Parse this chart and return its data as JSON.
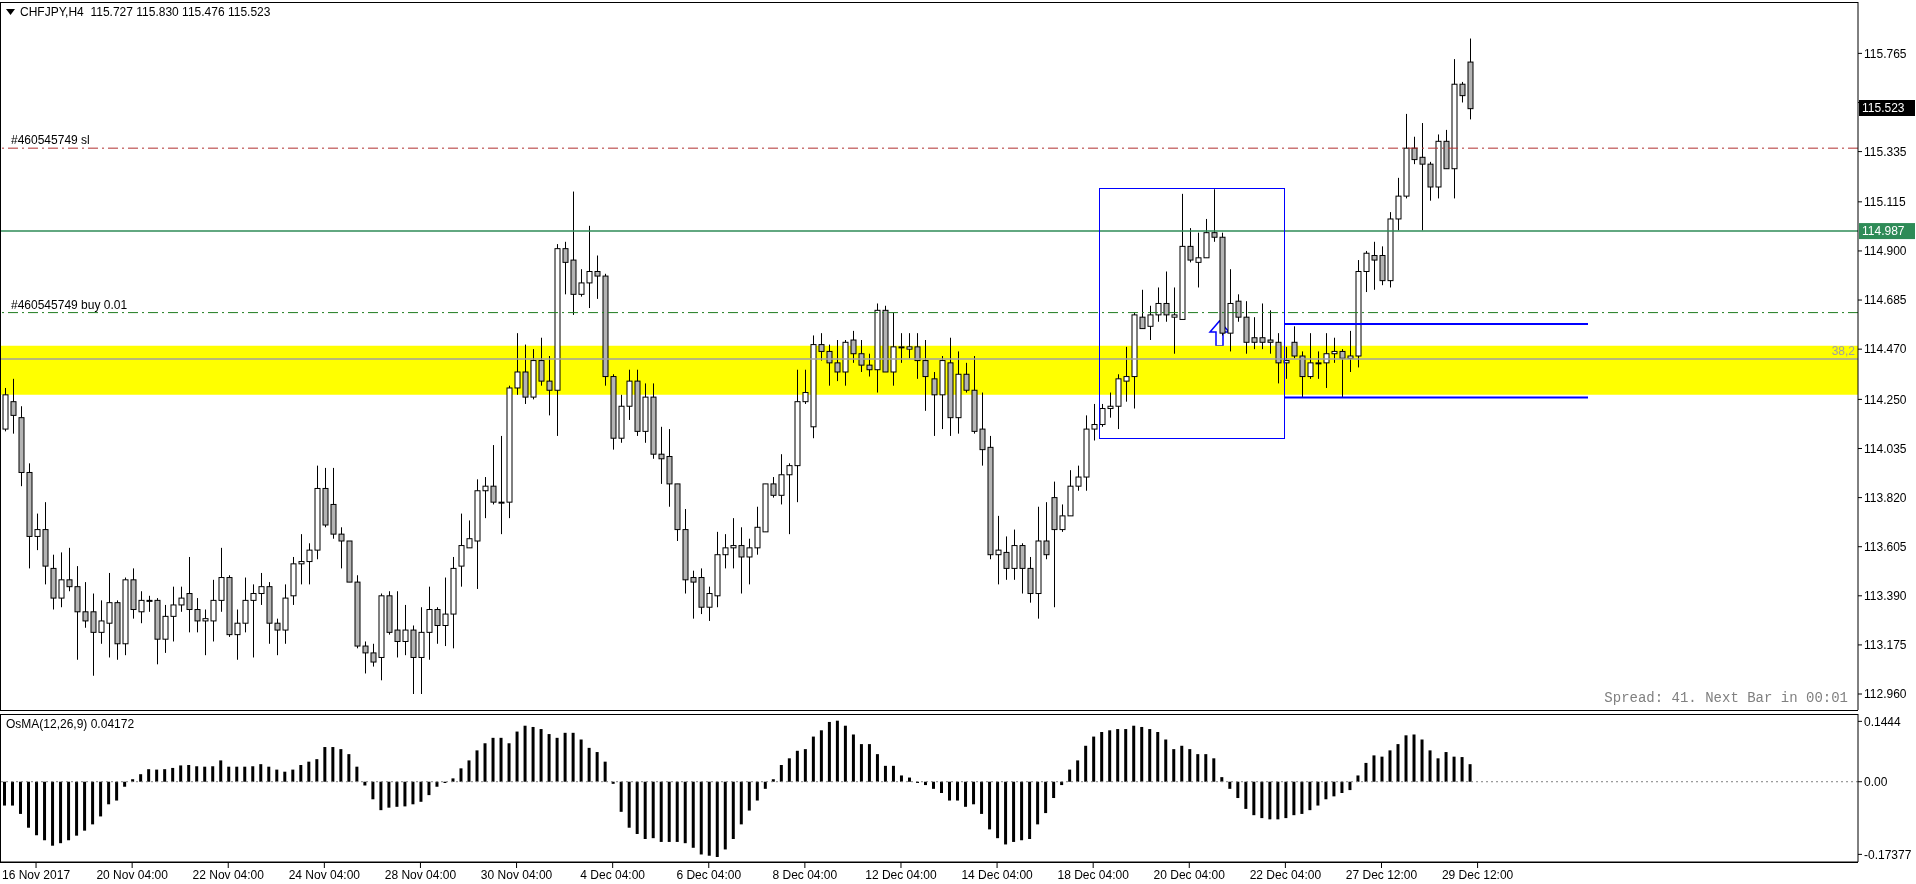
{
  "chart_data": [
    {
      "type": "candlestick",
      "title": "CHFJPY,H4  115.727 115.830 115.476 115.523",
      "tick_labels": "y",
      "categories": [
        null,
        null,
        null,
        null,
        null,
        null,
        null,
        null,
        null,
        null,
        null,
        null,
        null,
        null,
        null,
        null,
        null,
        null,
        null,
        null,
        null,
        null,
        null,
        null,
        null,
        null,
        null,
        null,
        null,
        null,
        null,
        null,
        null,
        null,
        null,
        null,
        null,
        null,
        null,
        null,
        null,
        null,
        null,
        null,
        null,
        null,
        null,
        null,
        null,
        null,
        null,
        null,
        null,
        null,
        null,
        null,
        null,
        null,
        null,
        null,
        null,
        null,
        null,
        null,
        null,
        null,
        null,
        null,
        null,
        null,
        null,
        null,
        null,
        null,
        null,
        null,
        null,
        null,
        null,
        null,
        null,
        null,
        null,
        null,
        null,
        null,
        null,
        null,
        null,
        null,
        null,
        null,
        null,
        null,
        null,
        null,
        null,
        null,
        null,
        null,
        null,
        null,
        null,
        null,
        null,
        null,
        null,
        null,
        null,
        null,
        null,
        null,
        null,
        null,
        null,
        null,
        null,
        null,
        null,
        null,
        null,
        null,
        null,
        null,
        null,
        null,
        null,
        null,
        null,
        null,
        null,
        null,
        null,
        null,
        null,
        null,
        null,
        null,
        null,
        null,
        null,
        null,
        null,
        null,
        null,
        null,
        null,
        null,
        null,
        null,
        null,
        null,
        null,
        null,
        null,
        null,
        null,
        null,
        null,
        null,
        null,
        null,
        null,
        null,
        null,
        null,
        null,
        null,
        null,
        null,
        null,
        null,
        null,
        null,
        null,
        null,
        null,
        null,
        null,
        null,
        null,
        null,
        null,
        null,
        null,
        null,
        null,
        null,
        null,
        null,
        null,
        null,
        null,
        null,
        null,
        null,
        null,
        null,
        null,
        null,
        null,
        null,
        null,
        null,
        null,
        null,
        null,
        null,
        null,
        null,
        null,
        null,
        null,
        null,
        null,
        null,
        null,
        null,
        null,
        null,
        null,
        null,
        null,
        null,
        null,
        null,
        null,
        null,
        null,
        null,
        null,
        null
      ],
      "ohlc": [
        [
          114.12,
          114.3,
          114.11,
          114.27
        ],
        [
          114.24,
          114.34,
          114.1,
          114.18
        ],
        [
          114.17,
          114.22,
          113.87,
          113.93
        ],
        [
          113.93,
          113.97,
          113.51,
          113.65
        ],
        [
          113.65,
          113.75,
          113.59,
          113.68
        ],
        [
          113.68,
          113.8,
          113.44,
          113.52
        ],
        [
          113.51,
          113.57,
          113.33,
          113.38
        ],
        [
          113.38,
          113.58,
          113.34,
          113.46
        ],
        [
          113.46,
          113.6,
          113.41,
          113.43
        ],
        [
          113.43,
          113.52,
          113.11,
          113.32
        ],
        [
          113.32,
          113.45,
          113.25,
          113.28
        ],
        [
          113.32,
          113.4,
          113.04,
          113.23
        ],
        [
          113.23,
          113.37,
          113.18,
          113.28
        ],
        [
          113.27,
          113.49,
          113.12,
          113.36
        ],
        [
          113.36,
          113.37,
          113.11,
          113.18
        ],
        [
          113.18,
          113.47,
          113.13,
          113.46
        ],
        [
          113.46,
          113.51,
          113.29,
          113.33
        ],
        [
          113.32,
          113.41,
          113.27,
          113.37
        ],
        [
          113.37,
          113.39,
          113.32,
          113.37
        ],
        [
          113.37,
          113.38,
          113.09,
          113.2
        ],
        [
          113.2,
          113.35,
          113.14,
          113.3
        ],
        [
          113.3,
          113.43,
          113.19,
          113.35
        ],
        [
          113.35,
          113.43,
          113.32,
          113.38
        ],
        [
          113.4,
          113.56,
          113.23,
          113.33
        ],
        [
          113.33,
          113.38,
          113.23,
          113.28
        ],
        [
          113.28,
          113.33,
          113.13,
          113.29
        ],
        [
          113.28,
          113.46,
          113.19,
          113.37
        ],
        [
          113.37,
          113.6,
          113.32,
          113.47
        ],
        [
          113.47,
          113.48,
          113.21,
          113.22
        ],
        [
          113.22,
          113.33,
          113.11,
          113.27
        ],
        [
          113.27,
          113.47,
          113.23,
          113.37
        ],
        [
          113.37,
          113.44,
          113.12,
          113.4
        ],
        [
          113.4,
          113.49,
          113.35,
          113.43
        ],
        [
          113.43,
          113.45,
          113.18,
          113.27
        ],
        [
          113.27,
          113.29,
          113.13,
          113.24
        ],
        [
          113.24,
          113.44,
          113.18,
          113.38
        ],
        [
          113.39,
          113.56,
          113.35,
          113.53
        ],
        [
          113.53,
          113.66,
          113.44,
          113.54
        ],
        [
          113.54,
          113.62,
          113.44,
          113.59
        ],
        [
          113.59,
          113.96,
          113.55,
          113.86
        ],
        [
          113.86,
          113.95,
          113.69,
          113.7
        ],
        [
          113.79,
          113.95,
          113.64,
          113.66
        ],
        [
          113.66,
          113.69,
          113.51,
          113.63
        ],
        [
          113.63,
          113.63,
          113.45,
          113.45
        ],
        [
          113.45,
          113.48,
          113.16,
          113.17
        ],
        [
          113.17,
          113.19,
          113.05,
          113.14
        ],
        [
          113.14,
          113.18,
          113.08,
          113.1
        ],
        [
          113.12,
          113.4,
          113.02,
          113.39
        ],
        [
          113.39,
          113.41,
          113.22,
          113.23
        ],
        [
          113.24,
          113.41,
          113.12,
          113.19
        ],
        [
          113.19,
          113.35,
          113.13,
          113.24
        ],
        [
          113.24,
          113.26,
          112.96,
          113.12
        ],
        [
          113.12,
          113.34,
          112.96,
          113.23
        ],
        [
          113.23,
          113.43,
          113.11,
          113.33
        ],
        [
          113.33,
          113.34,
          113.18,
          113.26
        ],
        [
          113.26,
          113.47,
          113.17,
          113.31
        ],
        [
          113.31,
          113.56,
          113.16,
          113.51
        ],
        [
          113.52,
          113.75,
          113.43,
          113.61
        ],
        [
          113.6,
          113.72,
          113.6,
          113.64
        ],
        [
          113.63,
          113.9,
          113.42,
          113.85
        ],
        [
          113.85,
          113.91,
          113.73,
          113.87
        ],
        [
          113.87,
          114.05,
          113.79,
          113.8
        ],
        [
          113.8,
          114.09,
          113.66,
          113.8
        ],
        [
          113.8,
          114.31,
          113.73,
          114.3
        ],
        [
          114.3,
          114.54,
          114.27,
          114.37
        ],
        [
          114.37,
          114.49,
          114.23,
          114.26
        ],
        [
          114.26,
          114.47,
          114.25,
          114.42
        ],
        [
          114.42,
          114.52,
          114.31,
          114.33
        ],
        [
          114.33,
          114.44,
          114.18,
          114.29
        ],
        [
          114.29,
          114.93,
          114.09,
          114.91
        ],
        [
          114.91,
          114.94,
          114.71,
          114.85
        ],
        [
          114.86,
          115.16,
          114.62,
          114.71
        ],
        [
          114.71,
          114.82,
          114.7,
          114.76
        ],
        [
          114.76,
          115.01,
          114.65,
          114.81
        ],
        [
          114.81,
          114.88,
          114.69,
          114.79
        ],
        [
          114.79,
          114.8,
          114.31,
          114.35
        ],
        [
          114.35,
          114.36,
          114.03,
          114.08
        ],
        [
          114.08,
          114.27,
          114.06,
          114.22
        ],
        [
          114.22,
          114.38,
          114.16,
          114.33
        ],
        [
          114.33,
          114.38,
          114.09,
          114.11
        ],
        [
          114.11,
          114.32,
          114.06,
          114.26
        ],
        [
          114.26,
          114.32,
          113.99,
          114.01
        ],
        [
          114.01,
          114.13,
          113.88,
          113.99
        ],
        [
          114.0,
          114.12,
          113.78,
          113.88
        ],
        [
          113.88,
          113.88,
          113.63,
          113.68
        ],
        [
          113.68,
          113.77,
          113.4,
          113.46
        ],
        [
          113.47,
          113.5,
          113.29,
          113.45
        ],
        [
          113.47,
          113.51,
          113.31,
          113.34
        ],
        [
          113.34,
          113.43,
          113.28,
          113.4
        ],
        [
          113.39,
          113.67,
          113.34,
          113.57
        ],
        [
          113.57,
          113.66,
          113.51,
          113.6
        ],
        [
          113.6,
          113.73,
          113.51,
          113.61
        ],
        [
          113.61,
          113.69,
          113.4,
          113.56
        ],
        [
          113.56,
          113.64,
          113.44,
          113.6
        ],
        [
          113.6,
          113.78,
          113.57,
          113.69
        ],
        [
          113.67,
          113.88,
          113.67,
          113.88
        ],
        [
          113.88,
          113.91,
          113.82,
          113.83
        ],
        [
          113.83,
          114.01,
          113.79,
          113.92
        ],
        [
          113.92,
          113.97,
          113.66,
          113.96
        ],
        [
          113.96,
          114.38,
          113.8,
          114.24
        ],
        [
          114.24,
          114.38,
          114.23,
          114.28
        ],
        [
          114.13,
          114.53,
          114.08,
          114.49
        ],
        [
          114.49,
          114.54,
          114.42,
          114.46
        ],
        [
          114.46,
          114.49,
          114.31,
          114.41
        ],
        [
          114.41,
          114.51,
          114.33,
          114.37
        ],
        [
          114.37,
          114.51,
          114.31,
          114.5
        ],
        [
          114.51,
          114.55,
          114.41,
          114.45
        ],
        [
          114.45,
          114.51,
          114.37,
          114.4
        ],
        [
          114.4,
          114.45,
          114.35,
          114.38
        ],
        [
          114.38,
          114.67,
          114.28,
          114.64
        ],
        [
          114.64,
          114.66,
          114.37,
          114.37
        ],
        [
          114.37,
          114.63,
          114.31,
          114.48
        ],
        [
          114.48,
          114.54,
          114.41,
          114.48
        ],
        [
          114.47,
          114.54,
          114.43,
          114.48
        ],
        [
          114.48,
          114.54,
          114.34,
          114.42
        ],
        [
          114.42,
          114.51,
          114.2,
          114.35
        ],
        [
          114.34,
          114.37,
          114.09,
          114.27
        ],
        [
          114.27,
          114.44,
          114.12,
          114.42
        ],
        [
          114.41,
          114.52,
          114.09,
          114.17
        ],
        [
          114.17,
          114.46,
          114.1,
          114.36
        ],
        [
          114.36,
          114.41,
          114.28,
          114.29
        ],
        [
          114.29,
          114.44,
          114.1,
          114.11
        ],
        [
          114.12,
          114.28,
          113.96,
          114.03
        ],
        [
          114.04,
          114.09,
          113.55,
          113.57
        ],
        [
          113.57,
          113.74,
          113.44,
          113.59
        ],
        [
          113.58,
          113.65,
          113.46,
          113.51
        ],
        [
          113.51,
          113.68,
          113.46,
          113.61
        ],
        [
          113.61,
          113.62,
          113.4,
          113.51
        ],
        [
          113.51,
          113.56,
          113.36,
          113.4
        ],
        [
          113.4,
          113.78,
          113.29,
          113.63
        ],
        [
          113.63,
          113.8,
          113.55,
          113.57
        ],
        [
          113.82,
          113.89,
          113.34,
          113.68
        ],
        [
          113.68,
          113.79,
          113.67,
          113.74
        ],
        [
          113.74,
          113.94,
          113.74,
          113.87
        ],
        [
          113.87,
          113.96,
          113.85,
          113.91
        ],
        [
          113.91,
          114.18,
          113.85,
          114.12
        ],
        [
          114.12,
          114.23,
          114.07,
          114.14
        ],
        [
          114.14,
          114.23,
          114.13,
          114.21
        ],
        [
          114.21,
          114.28,
          114.17,
          114.22
        ],
        [
          114.22,
          114.36,
          114.12,
          114.34
        ],
        [
          114.33,
          114.48,
          114.24,
          114.35
        ],
        [
          114.35,
          114.63,
          114.21,
          114.62
        ],
        [
          114.61,
          114.73,
          114.56,
          114.56
        ],
        [
          114.57,
          114.66,
          114.51,
          114.62
        ],
        [
          114.62,
          114.74,
          114.59,
          114.67
        ],
        [
          114.67,
          114.81,
          114.59,
          114.62
        ],
        [
          114.61,
          114.74,
          114.45,
          114.62
        ],
        [
          114.6,
          115.15,
          114.6,
          114.92
        ],
        [
          114.92,
          115.0,
          114.85,
          114.86
        ],
        [
          114.85,
          114.98,
          114.74,
          114.87
        ],
        [
          114.87,
          115.04,
          114.87,
          114.98
        ],
        [
          114.98,
          115.17,
          114.94,
          114.96
        ],
        [
          114.96,
          114.98,
          114.53,
          114.54
        ],
        [
          114.54,
          114.82,
          114.46,
          114.67
        ],
        [
          114.68,
          114.71,
          114.59,
          114.61
        ],
        [
          114.61,
          114.68,
          114.45,
          114.5
        ],
        [
          114.52,
          114.61,
          114.47,
          114.5
        ],
        [
          114.52,
          114.67,
          114.47,
          114.5
        ],
        [
          114.51,
          114.64,
          114.45,
          114.5
        ],
        [
          114.5,
          114.54,
          114.32,
          114.41
        ],
        [
          114.41,
          114.48,
          114.34,
          114.42
        ],
        [
          114.5,
          114.57,
          114.43,
          114.44
        ],
        [
          114.44,
          114.46,
          114.26,
          114.35
        ],
        [
          114.35,
          114.54,
          114.34,
          114.41
        ],
        [
          114.41,
          114.46,
          114.34,
          114.41
        ],
        [
          114.41,
          114.54,
          114.3,
          114.45
        ],
        [
          114.45,
          114.52,
          114.41,
          114.46
        ],
        [
          114.46,
          114.47,
          114.26,
          114.43
        ],
        [
          114.43,
          114.55,
          114.37,
          114.44
        ],
        [
          114.44,
          114.86,
          114.39,
          114.81
        ],
        [
          114.81,
          114.9,
          114.72,
          114.89
        ],
        [
          114.88,
          114.94,
          114.73,
          114.86
        ],
        [
          114.88,
          114.92,
          114.75,
          114.77
        ],
        [
          114.77,
          115.07,
          114.74,
          115.04
        ],
        [
          115.04,
          115.22,
          114.99,
          115.14
        ],
        [
          115.14,
          115.5,
          115.13,
          115.35
        ],
        [
          115.35,
          115.4,
          115.28,
          115.3
        ],
        [
          115.31,
          115.46,
          114.99,
          115.28
        ],
        [
          115.28,
          115.29,
          115.12,
          115.18
        ],
        [
          115.18,
          115.41,
          115.13,
          115.38
        ],
        [
          115.38,
          115.43,
          115.26,
          115.26
        ],
        [
          115.26,
          115.74,
          115.13,
          115.63
        ],
        [
          115.63,
          115.64,
          115.55,
          115.58
        ],
        [
          115.727,
          115.83,
          115.476,
          115.523
        ],
        null,
        null,
        null,
        null,
        null,
        null,
        null,
        null,
        null,
        null,
        null,
        null,
        null,
        null,
        null,
        null,
        null,
        null,
        null,
        null,
        null,
        null,
        null,
        null,
        null,
        null,
        null,
        null,
        null,
        null,
        null,
        null,
        null,
        null,
        null,
        null,
        null,
        null,
        null,
        null,
        null,
        null,
        null,
        null,
        null,
        null,
        null,
        null
      ],
      "ylim": [
        112.89,
        115.99
      ],
      "yticks": [
        {
          "value": 112.96,
          "label": "112.960"
        },
        113.175,
        {
          "value": 113.39,
          "label": "113.390"
        },
        113.605,
        {
          "value": 113.82,
          "label": "113.820"
        },
        114.035,
        {
          "value": 114.25,
          "label": "114.250"
        },
        {
          "value": 114.47,
          "label": "114.470"
        },
        114.685,
        {
          "value": 114.9,
          "label": "114.900"
        },
        115.115,
        115.335,
        {
          "value": 115.55,
          "label": null
        },
        115.765
      ],
      "ref_lines": [
        {
          "axis": "y",
          "value": 115.35,
          "label": "#460545749 sl",
          "color": "#b03030",
          "line_style": "dashed"
        },
        {
          "axis": "y",
          "value": 114.987,
          "label": "114.987",
          "color": "#2e8b57",
          "line_style": "solid"
        },
        {
          "axis": "y",
          "value": 114.63,
          "label": "#460545749 buy 0.01",
          "color": "#1e7b1e",
          "line_style": "dashed"
        },
        {
          "axis": "y",
          "value": 114.427,
          "color": "#a0a0a0",
          "line_style": "solid"
        }
      ],
      "bands": [
        {
          "axis": "y",
          "from": 114.27,
          "to": 114.485,
          "color": "#ffff00"
        }
      ],
      "annotations": [
        "Spread: 41. Next Bar in 00:01",
        {
          "text": "38,2",
          "y": 114.427
        },
        "115.523"
      ]
    },
    {
      "type": "bar",
      "title": "OsMA(12,26,9) 0.04172",
      "color": "#000000",
      "categories": [
        null,
        null,
        null,
        null,
        "16 Nov 2017",
        null,
        null,
        null,
        null,
        null,
        null,
        null,
        null,
        null,
        null,
        null,
        "20 Nov 04:00",
        null,
        null,
        null,
        null,
        null,
        null,
        null,
        null,
        null,
        null,
        null,
        "22 Nov 04:00",
        null,
        null,
        null,
        null,
        null,
        null,
        null,
        null,
        null,
        null,
        null,
        "24 Nov 04:00",
        null,
        null,
        null,
        null,
        null,
        null,
        null,
        null,
        null,
        null,
        null,
        "28 Nov 04:00",
        null,
        null,
        null,
        null,
        null,
        null,
        null,
        null,
        null,
        null,
        null,
        "30 Nov 04:00",
        null,
        null,
        null,
        null,
        null,
        null,
        null,
        null,
        null,
        null,
        null,
        "4 Dec 04:00",
        null,
        null,
        null,
        null,
        null,
        null,
        null,
        null,
        null,
        null,
        null,
        "6 Dec 04:00",
        null,
        null,
        null,
        null,
        null,
        null,
        null,
        null,
        null,
        null,
        null,
        "8 Dec 04:00",
        null,
        null,
        null,
        null,
        null,
        null,
        null,
        null,
        null,
        null,
        null,
        "12 Dec 04:00",
        null,
        null,
        null,
        null,
        null,
        null,
        null,
        null,
        null,
        null,
        null,
        "14 Dec 04:00",
        null,
        null,
        null,
        null,
        null,
        null,
        null,
        null,
        null,
        null,
        null,
        "18 Dec 04:00",
        null,
        null,
        null,
        null,
        null,
        null,
        null,
        null,
        null,
        null,
        null,
        "20 Dec 04:00",
        null,
        null,
        null,
        null,
        null,
        null,
        null,
        null,
        null,
        null,
        null,
        "22 Dec 04:00",
        null,
        null,
        null,
        null,
        null,
        null,
        null,
        null,
        null,
        null,
        null,
        "27 Dec 12:00",
        null,
        null,
        null,
        null,
        null,
        null,
        null,
        null,
        null,
        null,
        null,
        "29 Dec 12:00",
        null,
        null,
        null,
        null,
        null,
        null,
        null,
        null,
        null,
        null,
        null,
        null,
        null,
        null,
        null,
        null,
        null,
        null,
        null,
        null,
        null,
        null,
        null,
        null,
        null,
        null,
        null,
        null,
        null,
        null,
        null,
        null,
        null,
        null,
        null,
        null,
        null,
        null,
        null,
        null,
        null,
        null,
        null,
        null,
        null,
        null,
        null
      ],
      "values": [
        -0.057,
        -0.057,
        -0.077,
        -0.11,
        -0.128,
        -0.14,
        -0.153,
        -0.147,
        -0.14,
        -0.129,
        -0.117,
        -0.102,
        -0.083,
        -0.054,
        -0.045,
        -0.012,
        0.006,
        0.018,
        0.03,
        0.029,
        0.03,
        0.033,
        0.039,
        0.04,
        0.037,
        0.036,
        0.037,
        0.051,
        0.036,
        0.036,
        0.036,
        0.037,
        0.042,
        0.036,
        0.029,
        0.024,
        0.029,
        0.04,
        0.048,
        0.054,
        0.083,
        0.083,
        0.078,
        0.066,
        0.036,
        -0.009,
        -0.042,
        -0.068,
        -0.062,
        -0.06,
        -0.059,
        -0.054,
        -0.048,
        -0.032,
        -0.012,
        -0.003,
        0.008,
        0.032,
        0.051,
        0.075,
        0.092,
        0.105,
        0.105,
        0.092,
        0.12,
        0.134,
        0.131,
        0.126,
        0.114,
        0.105,
        0.117,
        0.117,
        0.101,
        0.081,
        0.071,
        0.048,
        -0.005,
        -0.072,
        -0.11,
        -0.125,
        -0.137,
        -0.135,
        -0.144,
        -0.144,
        -0.144,
        -0.147,
        -0.158,
        -0.174,
        -0.177,
        -0.18,
        -0.162,
        -0.137,
        -0.102,
        -0.069,
        -0.045,
        -0.017,
        0.006,
        0.04,
        0.056,
        0.074,
        0.078,
        0.108,
        0.123,
        0.143,
        0.146,
        0.134,
        0.113,
        0.09,
        0.09,
        0.066,
        0.038,
        0.038,
        0.015,
        0.01,
        -0.003,
        -0.008,
        -0.017,
        -0.027,
        -0.045,
        -0.045,
        -0.06,
        -0.054,
        -0.077,
        -0.114,
        -0.135,
        -0.15,
        -0.144,
        -0.14,
        -0.137,
        -0.102,
        -0.075,
        -0.039,
        -0.008,
        0.029,
        0.051,
        0.086,
        0.108,
        0.119,
        0.123,
        0.126,
        0.126,
        0.134,
        0.131,
        0.126,
        0.119,
        0.101,
        0.078,
        0.086,
        0.078,
        0.066,
        0.066,
        0.056,
        0.011,
        -0.017,
        -0.039,
        -0.065,
        -0.08,
        -0.087,
        -0.09,
        -0.09,
        -0.087,
        -0.08,
        -0.077,
        -0.068,
        -0.057,
        -0.042,
        -0.035,
        -0.027,
        -0.02,
        0.015,
        0.045,
        0.063,
        0.06,
        0.075,
        0.09,
        0.111,
        0.113,
        0.101,
        0.075,
        0.056,
        0.071,
        0.06,
        0.059,
        0.042,
        null,
        null,
        null,
        null,
        null,
        null,
        null,
        null,
        null,
        null,
        null,
        null,
        null,
        null,
        null,
        null,
        null,
        null,
        null,
        null,
        null,
        null,
        null,
        null,
        null,
        null,
        null,
        null,
        null,
        null,
        null,
        null,
        null,
        null,
        null,
        null,
        null,
        null,
        null,
        null,
        null,
        null,
        null,
        null,
        null,
        null,
        null,
        null
      ],
      "ylim": [
        -0.192,
        0.162
      ],
      "yticks": [
        -0.17377,
        {
          "value": 0,
          "label": "0.00"
        },
        0.1444
      ],
      "ref_lines": [
        {
          "axis": "y",
          "value": 0,
          "color": "#808080",
          "line_style": "dotted"
        }
      ]
    }
  ]
}
